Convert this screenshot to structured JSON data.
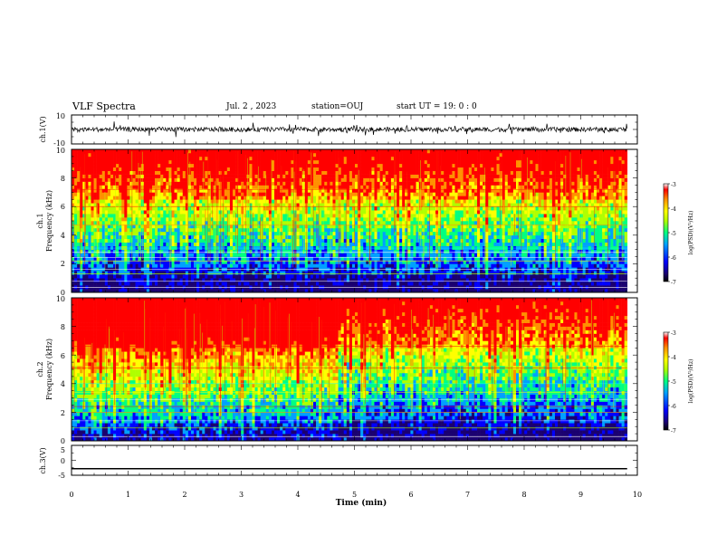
{
  "header": {
    "title": "VLF Spectra",
    "date": "Jul. 2 , 2023",
    "station": "station=OUJ",
    "start": "start UT = 19: 0 : 0"
  },
  "chart_data": [
    {
      "type": "line",
      "panel": "ch1-waveform",
      "ylabel": "ch.1(V)",
      "ylim": [
        -10,
        10
      ],
      "yticks": [
        "10",
        "-10"
      ],
      "xlim": [
        0,
        10
      ],
      "baseline": 0
    },
    {
      "type": "heatmap",
      "panel": "ch1-spectrogram",
      "ylabel": [
        "ch.1",
        "Frequency (kHz)"
      ],
      "ylim": [
        0,
        10
      ],
      "yticks": [
        "0",
        "2",
        "4",
        "6",
        "8",
        "10"
      ],
      "xlim": [
        0,
        10
      ],
      "colorbar": {
        "label": "log(PSD)(V²/Hz)",
        "range": [
          -7,
          -3
        ],
        "ticks": [
          "-3",
          "-4",
          "-5",
          "-6",
          "-7"
        ]
      }
    },
    {
      "type": "heatmap",
      "panel": "ch2-spectrogram",
      "ylabel": [
        "ch.2",
        "Frequency (kHz)"
      ],
      "ylim": [
        0,
        10
      ],
      "yticks": [
        "0",
        "2",
        "4",
        "6",
        "8",
        "10"
      ],
      "xlim": [
        0,
        10
      ],
      "colorbar": {
        "label": "log(PSD)(V²/Hz)",
        "range": [
          -7,
          -3
        ],
        "ticks": [
          "-3",
          "-4",
          "-5",
          "-6",
          "-7"
        ]
      }
    },
    {
      "type": "line",
      "panel": "ch3-waveform",
      "ylabel": "ch.3(V)",
      "ylim": [
        -5,
        5
      ],
      "yticks": [
        "5",
        "0",
        "-5"
      ],
      "xlim": [
        0,
        10
      ],
      "baseline": -2.8
    }
  ],
  "xaxis": {
    "label": "Time (min)",
    "ticks": [
      "0",
      "1",
      "2",
      "3",
      "4",
      "5",
      "6",
      "7",
      "8",
      "9",
      "10"
    ],
    "data_end": 9.82
  },
  "colors": {
    "palette": [
      "#1a0070",
      "#0000ff",
      "#00a0ff",
      "#00ff80",
      "#b0ff00",
      "#ffff00",
      "#ff9000",
      "#ff0000"
    ]
  }
}
